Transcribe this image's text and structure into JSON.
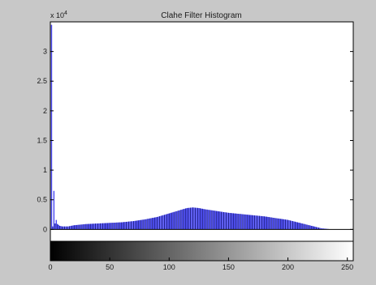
{
  "chart_data": {
    "type": "bar",
    "title": "Clahe Filter Histogram",
    "xlabel": "",
    "ylabel": "",
    "y_multiplier": "x 10",
    "y_multiplier_exponent": "4",
    "xlim": [
      0,
      255
    ],
    "ylim": [
      -0.2,
      3.5
    ],
    "x_ticks": [
      0,
      50,
      100,
      150,
      200,
      250
    ],
    "x_tick_labels": [
      "0",
      "50",
      "100",
      "150",
      "200",
      "250"
    ],
    "y_ticks": [
      0,
      0.5,
      1,
      1.5,
      2,
      2.5,
      3
    ],
    "y_tick_labels": [
      "0",
      "0.5",
      "1",
      "1.5",
      "2",
      "2.5",
      "3"
    ],
    "grid": false,
    "colorbar": "grayscale gradient 0-255 under axis",
    "colors": {
      "bars": "#4c4cf0",
      "bar_edge": "#1c1c7a",
      "axes_bg": "#ffffff",
      "figure_bg": "#c8c8c8"
    },
    "envelope_x": [
      0,
      1,
      2,
      3,
      4,
      5,
      6,
      8,
      10,
      15,
      20,
      30,
      40,
      50,
      60,
      70,
      80,
      90,
      100,
      110,
      115,
      120,
      125,
      130,
      140,
      150,
      160,
      170,
      180,
      190,
      200,
      210,
      220,
      228,
      235,
      240,
      255
    ],
    "envelope_y": [
      0,
      3.45,
      0.05,
      0.65,
      0.1,
      0.16,
      0.09,
      0.06,
      0.05,
      0.05,
      0.07,
      0.09,
      0.1,
      0.11,
      0.12,
      0.14,
      0.17,
      0.21,
      0.27,
      0.33,
      0.36,
      0.37,
      0.36,
      0.34,
      0.31,
      0.28,
      0.26,
      0.24,
      0.22,
      0.19,
      0.16,
      0.11,
      0.06,
      0.02,
      0.005,
      0,
      0
    ]
  }
}
